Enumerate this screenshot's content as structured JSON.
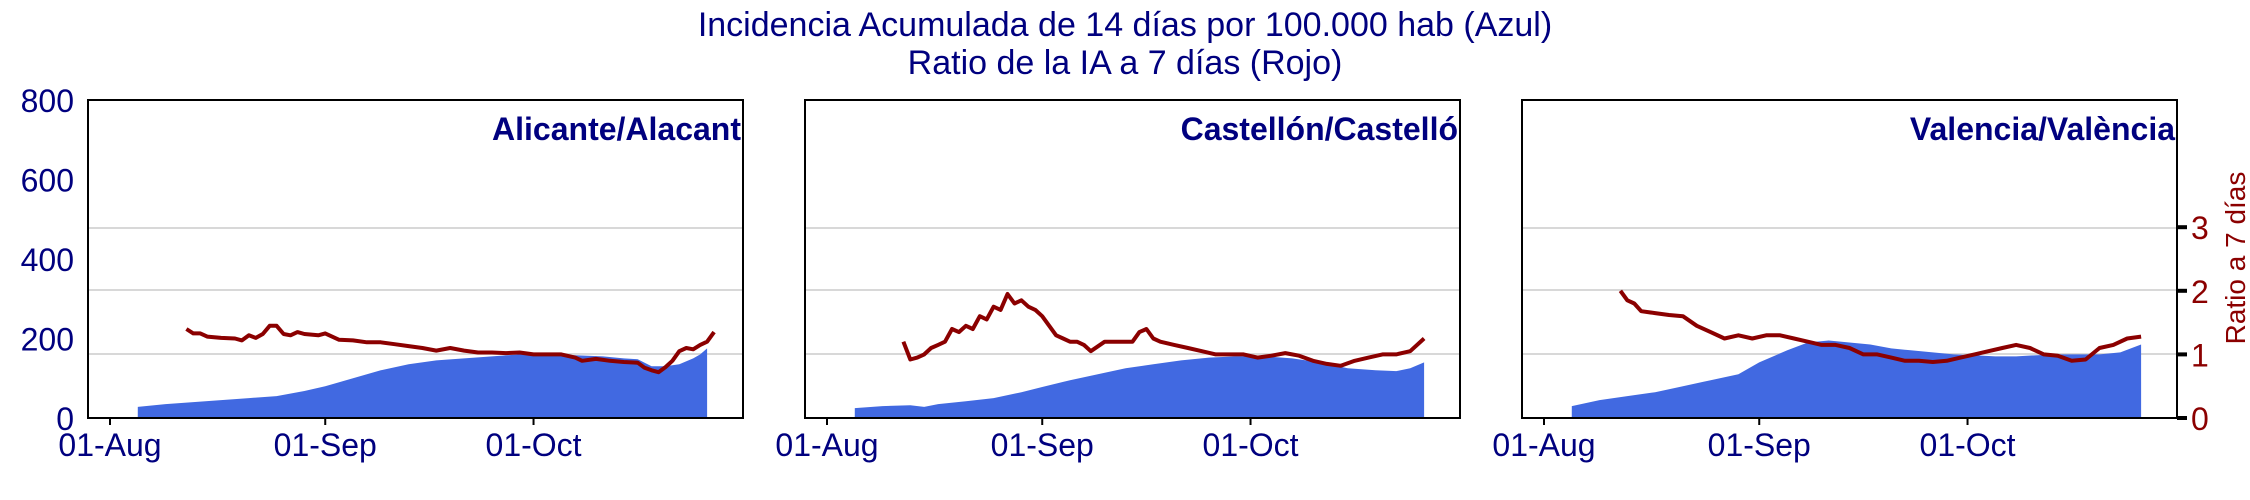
{
  "chart_data": {
    "type": "area+line",
    "title_line1": "Incidencia Acumulada de 14 días por 100.000 hab (Azul)",
    "title_line2": "Ratio de la IA a 7 días (Rojo)",
    "ylim_left": [
      0,
      800
    ],
    "ylim_right": [
      0,
      5
    ],
    "yticks_left": [
      "0",
      "200",
      "400",
      "600",
      "800"
    ],
    "yticks_right": [
      "0",
      "1",
      "2",
      "3"
    ],
    "ylabel_right": "Ratio a 7 días",
    "xticks": [
      "01-Aug",
      "01-Sep",
      "01-Oct"
    ],
    "xticks_day": [
      0,
      31,
      61
    ],
    "x_range_days": [
      0,
      88
    ],
    "grid": "horizontal",
    "colors": {
      "area": "#4169e1",
      "line": "#8b0000",
      "text": "#00007f",
      "grid": "#cccccc"
    },
    "panels": [
      {
        "name": "Alicante/Alacant",
        "ia14": [
          [
            4,
            28
          ],
          [
            8,
            35
          ],
          [
            12,
            40
          ],
          [
            16,
            45
          ],
          [
            20,
            50
          ],
          [
            24,
            55
          ],
          [
            28,
            68
          ],
          [
            31,
            80
          ],
          [
            35,
            100
          ],
          [
            39,
            120
          ],
          [
            43,
            135
          ],
          [
            47,
            145
          ],
          [
            51,
            150
          ],
          [
            55,
            155
          ],
          [
            59,
            160
          ],
          [
            63,
            160
          ],
          [
            67,
            158
          ],
          [
            71,
            155
          ],
          [
            74,
            150
          ],
          [
            76,
            148
          ],
          [
            78,
            130
          ],
          [
            80,
            130
          ],
          [
            82,
            135
          ],
          [
            84,
            150
          ],
          [
            85,
            160
          ],
          [
            86,
            175
          ]
        ],
        "ratio7": [
          [
            11,
            1.4
          ],
          [
            12,
            1.33
          ],
          [
            13,
            1.33
          ],
          [
            14,
            1.28
          ],
          [
            16,
            1.26
          ],
          [
            18,
            1.25
          ],
          [
            19,
            1.22
          ],
          [
            20,
            1.3
          ],
          [
            21,
            1.26
          ],
          [
            22,
            1.32
          ],
          [
            23,
            1.45
          ],
          [
            24,
            1.45
          ],
          [
            25,
            1.32
          ],
          [
            26,
            1.3
          ],
          [
            27,
            1.35
          ],
          [
            28,
            1.32
          ],
          [
            30,
            1.3
          ],
          [
            31,
            1.33
          ],
          [
            33,
            1.23
          ],
          [
            35,
            1.22
          ],
          [
            37,
            1.19
          ],
          [
            39,
            1.19
          ],
          [
            41,
            1.16
          ],
          [
            43,
            1.13
          ],
          [
            45,
            1.1
          ],
          [
            47,
            1.06
          ],
          [
            49,
            1.1
          ],
          [
            51,
            1.06
          ],
          [
            53,
            1.03
          ],
          [
            55,
            1.03
          ],
          [
            57,
            1.02
          ],
          [
            59,
            1.03
          ],
          [
            61,
            1.0
          ],
          [
            63,
            1.0
          ],
          [
            65,
            1.0
          ],
          [
            67,
            0.95
          ],
          [
            68,
            0.9
          ],
          [
            70,
            0.93
          ],
          [
            72,
            0.9
          ],
          [
            74,
            0.88
          ],
          [
            76,
            0.87
          ],
          [
            77,
            0.79
          ],
          [
            78,
            0.75
          ],
          [
            79,
            0.72
          ],
          [
            80,
            0.8
          ],
          [
            81,
            0.9
          ],
          [
            82,
            1.05
          ],
          [
            83,
            1.1
          ],
          [
            84,
            1.08
          ],
          [
            85,
            1.15
          ],
          [
            86,
            1.2
          ],
          [
            87,
            1.35
          ]
        ]
      },
      {
        "name": "Castellón/Castelló",
        "ia14": [
          [
            4,
            25
          ],
          [
            8,
            30
          ],
          [
            12,
            32
          ],
          [
            14,
            28
          ],
          [
            16,
            35
          ],
          [
            20,
            42
          ],
          [
            24,
            50
          ],
          [
            28,
            65
          ],
          [
            31,
            78
          ],
          [
            35,
            95
          ],
          [
            39,
            110
          ],
          [
            43,
            125
          ],
          [
            47,
            135
          ],
          [
            51,
            145
          ],
          [
            55,
            152
          ],
          [
            59,
            155
          ],
          [
            63,
            155
          ],
          [
            67,
            150
          ],
          [
            71,
            140
          ],
          [
            75,
            125
          ],
          [
            79,
            120
          ],
          [
            82,
            118
          ],
          [
            84,
            125
          ],
          [
            86,
            140
          ]
        ],
        "ratio7": [
          [
            11,
            1.2
          ],
          [
            12,
            0.92
          ],
          [
            13,
            0.95
          ],
          [
            14,
            1.0
          ],
          [
            15,
            1.1
          ],
          [
            16,
            1.15
          ],
          [
            17,
            1.2
          ],
          [
            18,
            1.4
          ],
          [
            19,
            1.35
          ],
          [
            20,
            1.45
          ],
          [
            21,
            1.4
          ],
          [
            22,
            1.6
          ],
          [
            23,
            1.55
          ],
          [
            24,
            1.75
          ],
          [
            25,
            1.7
          ],
          [
            26,
            1.95
          ],
          [
            27,
            1.8
          ],
          [
            28,
            1.85
          ],
          [
            29,
            1.75
          ],
          [
            30,
            1.7
          ],
          [
            31,
            1.6
          ],
          [
            32,
            1.45
          ],
          [
            33,
            1.3
          ],
          [
            34,
            1.25
          ],
          [
            35,
            1.2
          ],
          [
            36,
            1.2
          ],
          [
            37,
            1.15
          ],
          [
            38,
            1.05
          ],
          [
            40,
            1.2
          ],
          [
            42,
            1.2
          ],
          [
            44,
            1.2
          ],
          [
            45,
            1.35
          ],
          [
            46,
            1.4
          ],
          [
            47,
            1.25
          ],
          [
            48,
            1.2
          ],
          [
            50,
            1.15
          ],
          [
            52,
            1.1
          ],
          [
            54,
            1.05
          ],
          [
            56,
            1.0
          ],
          [
            58,
            1.0
          ],
          [
            60,
            1.0
          ],
          [
            62,
            0.95
          ],
          [
            64,
            0.98
          ],
          [
            66,
            1.02
          ],
          [
            68,
            0.98
          ],
          [
            70,
            0.9
          ],
          [
            72,
            0.85
          ],
          [
            74,
            0.82
          ],
          [
            76,
            0.9
          ],
          [
            78,
            0.95
          ],
          [
            80,
            1.0
          ],
          [
            82,
            1.0
          ],
          [
            84,
            1.05
          ],
          [
            86,
            1.25
          ]
        ]
      },
      {
        "name": "Valencia/València",
        "ia14": [
          [
            4,
            30
          ],
          [
            8,
            45
          ],
          [
            12,
            55
          ],
          [
            16,
            65
          ],
          [
            20,
            80
          ],
          [
            24,
            95
          ],
          [
            28,
            110
          ],
          [
            31,
            140
          ],
          [
            35,
            170
          ],
          [
            38,
            190
          ],
          [
            41,
            195
          ],
          [
            44,
            190
          ],
          [
            47,
            185
          ],
          [
            50,
            175
          ],
          [
            53,
            170
          ],
          [
            56,
            165
          ],
          [
            59,
            160
          ],
          [
            62,
            158
          ],
          [
            65,
            155
          ],
          [
            68,
            155
          ],
          [
            71,
            158
          ],
          [
            74,
            160
          ],
          [
            77,
            160
          ],
          [
            80,
            160
          ],
          [
            83,
            165
          ],
          [
            86,
            185
          ]
        ],
        "ratio7": [
          [
            11,
            2.0
          ],
          [
            12,
            1.85
          ],
          [
            13,
            1.8
          ],
          [
            14,
            1.68
          ],
          [
            16,
            1.65
          ],
          [
            18,
            1.62
          ],
          [
            20,
            1.6
          ],
          [
            22,
            1.45
          ],
          [
            24,
            1.35
          ],
          [
            26,
            1.25
          ],
          [
            28,
            1.3
          ],
          [
            30,
            1.25
          ],
          [
            32,
            1.3
          ],
          [
            34,
            1.3
          ],
          [
            36,
            1.25
          ],
          [
            38,
            1.2
          ],
          [
            40,
            1.15
          ],
          [
            42,
            1.15
          ],
          [
            44,
            1.1
          ],
          [
            46,
            1.0
          ],
          [
            48,
            1.0
          ],
          [
            50,
            0.95
          ],
          [
            52,
            0.9
          ],
          [
            54,
            0.9
          ],
          [
            56,
            0.88
          ],
          [
            58,
            0.9
          ],
          [
            60,
            0.95
          ],
          [
            62,
            1.0
          ],
          [
            64,
            1.05
          ],
          [
            66,
            1.1
          ],
          [
            68,
            1.15
          ],
          [
            70,
            1.1
          ],
          [
            72,
            1.0
          ],
          [
            74,
            0.98
          ],
          [
            76,
            0.9
          ],
          [
            78,
            0.92
          ],
          [
            80,
            1.1
          ],
          [
            82,
            1.15
          ],
          [
            84,
            1.25
          ],
          [
            86,
            1.28
          ]
        ]
      }
    ]
  }
}
